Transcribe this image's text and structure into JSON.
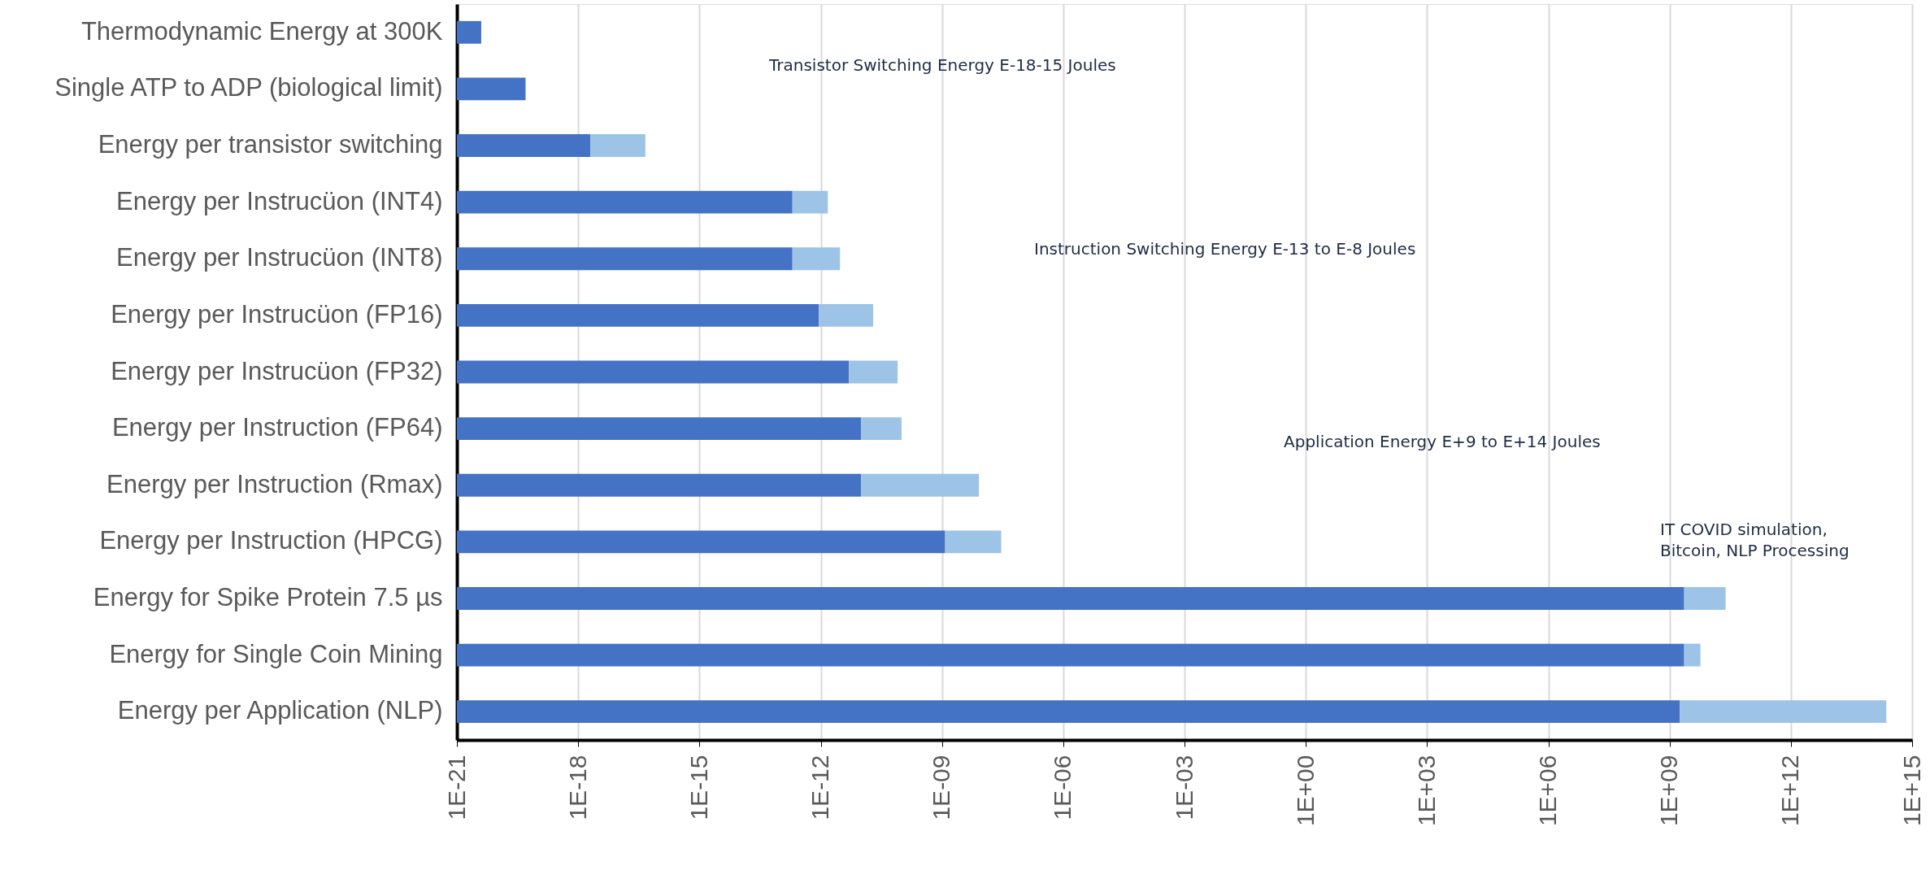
{
  "chart_data": {
    "type": "bar",
    "orientation": "horizontal",
    "stacked": true,
    "log": "x",
    "categories": [
      "Thermodynamic Energy at 300K",
      "Single ATP to ADP (biological limit)",
      "Energy per transistor switching",
      "Energy per Instrucüon (INT4)",
      "Energy per Instrucüon (INT8)",
      "Energy per Instrucüon (FP16)",
      "Energy per Instrucüon (FP32)",
      "Energy per Instruction (FP64)",
      "Energy per Instruction (Rmax)",
      "Energy per Instruction (HPCG)",
      "Energy for Spike Protein 7.5 µs",
      "Energy for Single Coin Mining",
      "Energy per Application (NLP)"
    ],
    "series": [
      {
        "color": "#4472c4",
        "values": [
          4e-21,
          5e-20,
          2e-18,
          2e-13,
          2e-13,
          9e-13,
          5e-12,
          1e-11,
          1e-11,
          1.2e-09,
          2300000000.0,
          2300000000.0,
          1800000000.0
        ]
      },
      {
        "color": "#9dc3e6",
        "values": [
          null,
          null,
          4.4e-17,
          1.3e-12,
          2.8e-12,
          1.9e-11,
          7.5e-11,
          9e-11,
          8.2e-09,
          2.8e-08,
          22000000000.0,
          3500000000.0,
          230000000000000.0
        ]
      }
    ],
    "xlim": [
      1e-21,
      1000000000000000.0
    ],
    "xticks": [
      {
        "value": 1e-21,
        "label": "1E-21"
      },
      {
        "value": 1e-18,
        "label": "1E-18"
      },
      {
        "value": 1e-15,
        "label": "1E-15"
      },
      {
        "value": 1e-12,
        "label": "1E-12"
      },
      {
        "value": 1e-09,
        "label": "1E-09"
      },
      {
        "value": 1e-06,
        "label": "1E-06"
      },
      {
        "value": 0.001,
        "label": "1E-03"
      },
      {
        "value": 1,
        "label": "1E+00"
      },
      {
        "value": 1000.0,
        "label": "1E+03"
      },
      {
        "value": 1000000.0,
        "label": "1E+06"
      },
      {
        "value": 1000000000.0,
        "label": "1E+09"
      },
      {
        "value": 1000000000000.0,
        "label": "1E+12"
      },
      {
        "value": 1000000000000000.0,
        "label": "1E+15"
      }
    ],
    "grid": "x",
    "annotations": [
      "Transistor Switching Energy E-18-15 Joules",
      "Instruction Switching Energy E-13 to E-8 Joules",
      "Application Energy E+9 to E+14 Joules",
      "IT COVID simulation,\nBitcoin, NLP Processing"
    ]
  }
}
